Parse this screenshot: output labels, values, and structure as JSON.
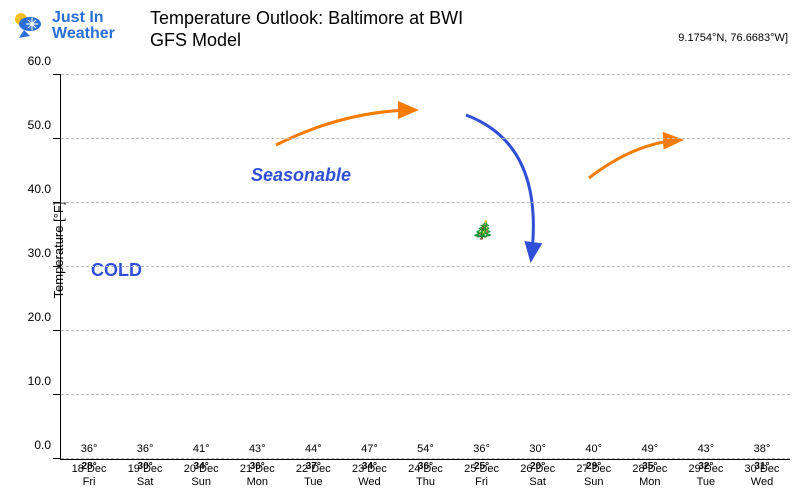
{
  "logo": {
    "line1": "Just In",
    "line2": "Weather"
  },
  "title": "Temperature Outlook: Baltimore at BWI",
  "subtitle": "GFS Model",
  "coords": "9.1754°N, 76.6683°W]",
  "ylabel": "Temperature [°F]",
  "ylim": [
    0,
    60
  ],
  "ytick_step": 10,
  "grid_color": "#bbbbbb",
  "background_color": "#ffffff",
  "blue_color": "#2f7dd7",
  "green_color": "#1b6b1b",
  "data": [
    {
      "date": "18 Dec",
      "day": "Fri",
      "hi": 36,
      "lo": 28
    },
    {
      "date": "19 Dec",
      "day": "Sat",
      "hi": 36,
      "lo": 30
    },
    {
      "date": "20 Dec",
      "day": "Sun",
      "hi": 41,
      "lo": 34
    },
    {
      "date": "21 Dec",
      "day": "Mon",
      "hi": 43,
      "lo": 36
    },
    {
      "date": "22 Dec",
      "day": "Tue",
      "hi": 44,
      "lo": 37
    },
    {
      "date": "23 Dec",
      "day": "Wed",
      "hi": 47,
      "lo": 34
    },
    {
      "date": "24 Dec",
      "day": "Thu",
      "hi": 54,
      "lo": 36
    },
    {
      "date": "25 Dec",
      "day": "Fri",
      "hi": 36,
      "lo": 25
    },
    {
      "date": "26 Dec",
      "day": "Sat",
      "hi": 30,
      "lo": 20
    },
    {
      "date": "27 Dec",
      "day": "Sun",
      "hi": 40,
      "lo": 29
    },
    {
      "date": "28 Dec",
      "day": "Mon",
      "hi": 49,
      "lo": 35
    },
    {
      "date": "29 Dec",
      "day": "Tue",
      "hi": 43,
      "lo": 32
    },
    {
      "date": "30 Dec",
      "day": "Wed",
      "hi": 38,
      "lo": 31
    }
  ],
  "annotations": {
    "cold": "COLD",
    "seasonable": "Seasonable"
  }
}
